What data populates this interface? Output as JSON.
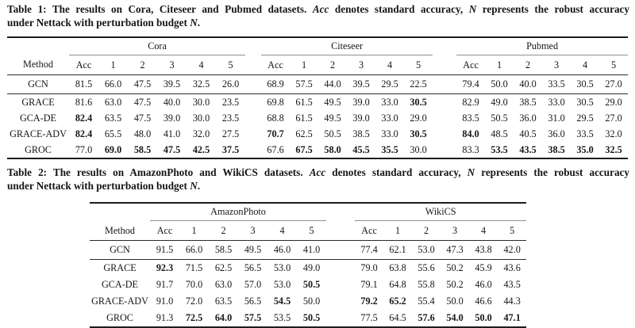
{
  "colors": {
    "background": "#ffffff",
    "text": "#161616",
    "rule_heavy": "#1c1c1c",
    "rule_mid": "#2b2b2b",
    "rule_light": "#8f8f8f"
  },
  "table1": {
    "caption_lines": [
      [
        {
          "t": "Table 1: The results on Cora, Citeseer and Pubmed datasets. ",
          "i": false
        },
        {
          "t": "Acc",
          "i": true
        },
        {
          "t": " denotes standard accuracy, ",
          "i": false
        },
        {
          "t": "N",
          "i": true
        },
        {
          "t": " represents the robust accuracy",
          "i": false
        }
      ],
      [
        {
          "t": "under Nettack with perturbation budget ",
          "i": false
        },
        {
          "t": "N",
          "i": true
        },
        {
          "t": ".",
          "i": false
        }
      ]
    ],
    "method_header": "Method",
    "groups": [
      {
        "name": "Cora",
        "columns": [
          "Acc",
          "1",
          "2",
          "3",
          "4",
          "5"
        ]
      },
      {
        "name": "Citeseer",
        "columns": [
          "Acc",
          "1",
          "2",
          "3",
          "4",
          "5"
        ]
      },
      {
        "name": "Pubmed",
        "columns": [
          "Acc",
          "1",
          "2",
          "3",
          "4",
          "5"
        ]
      }
    ],
    "rows": [
      {
        "method": "GCN",
        "cells": [
          {
            "v": "81.5"
          },
          {
            "v": "66.0"
          },
          {
            "v": "47.5"
          },
          {
            "v": "39.5"
          },
          {
            "v": "32.5"
          },
          {
            "v": "26.0"
          },
          {
            "v": "68.9"
          },
          {
            "v": "57.5"
          },
          {
            "v": "44.0"
          },
          {
            "v": "39.5"
          },
          {
            "v": "29.5"
          },
          {
            "v": "22.5"
          },
          {
            "v": "79.4"
          },
          {
            "v": "50.0"
          },
          {
            "v": "40.0"
          },
          {
            "v": "33.5"
          },
          {
            "v": "30.5"
          },
          {
            "v": "27.0"
          }
        ]
      },
      {
        "method": "GRACE",
        "cells": [
          {
            "v": "81.6"
          },
          {
            "v": "63.0"
          },
          {
            "v": "47.5"
          },
          {
            "v": "40.0"
          },
          {
            "v": "30.0"
          },
          {
            "v": "23.5"
          },
          {
            "v": "69.8"
          },
          {
            "v": "61.5"
          },
          {
            "v": "49.5"
          },
          {
            "v": "39.0"
          },
          {
            "v": "33.0"
          },
          {
            "v": "30.5",
            "b": true
          },
          {
            "v": "82.9"
          },
          {
            "v": "49.0"
          },
          {
            "v": "38.5"
          },
          {
            "v": "33.0"
          },
          {
            "v": "30.5"
          },
          {
            "v": "29.0"
          }
        ]
      },
      {
        "method": "GCA-DE",
        "cells": [
          {
            "v": "82.4",
            "b": true
          },
          {
            "v": "63.5"
          },
          {
            "v": "47.5"
          },
          {
            "v": "39.0"
          },
          {
            "v": "30.0"
          },
          {
            "v": "23.5"
          },
          {
            "v": "68.8"
          },
          {
            "v": "61.5"
          },
          {
            "v": "49.5"
          },
          {
            "v": "39.0"
          },
          {
            "v": "33.0"
          },
          {
            "v": "29.0"
          },
          {
            "v": "83.5"
          },
          {
            "v": "50.5"
          },
          {
            "v": "36.0"
          },
          {
            "v": "31.0"
          },
          {
            "v": "29.5"
          },
          {
            "v": "27.0"
          }
        ]
      },
      {
        "method": "GRACE-ADV",
        "cells": [
          {
            "v": "82.4",
            "b": true
          },
          {
            "v": "65.5"
          },
          {
            "v": "48.0"
          },
          {
            "v": "41.0"
          },
          {
            "v": "32.0"
          },
          {
            "v": "27.5"
          },
          {
            "v": "70.7",
            "b": true
          },
          {
            "v": "62.5"
          },
          {
            "v": "50.5"
          },
          {
            "v": "38.5"
          },
          {
            "v": "33.0"
          },
          {
            "v": "30.5",
            "b": true
          },
          {
            "v": "84.0",
            "b": true
          },
          {
            "v": "48.5"
          },
          {
            "v": "40.5"
          },
          {
            "v": "36.0"
          },
          {
            "v": "33.5"
          },
          {
            "v": "32.0"
          }
        ]
      },
      {
        "method": "GROC",
        "cells": [
          {
            "v": "77.0"
          },
          {
            "v": "69.0",
            "b": true
          },
          {
            "v": "58.5",
            "b": true
          },
          {
            "v": "47.5",
            "b": true
          },
          {
            "v": "42.5",
            "b": true
          },
          {
            "v": "37.5",
            "b": true
          },
          {
            "v": "67.6"
          },
          {
            "v": "67.5",
            "b": true
          },
          {
            "v": "58.0",
            "b": true
          },
          {
            "v": "45.5",
            "b": true
          },
          {
            "v": "35.5",
            "b": true
          },
          {
            "v": "30.0"
          },
          {
            "v": "83.3"
          },
          {
            "v": "53.5",
            "b": true
          },
          {
            "v": "43.5",
            "b": true
          },
          {
            "v": "38.5",
            "b": true
          },
          {
            "v": "35.0",
            "b": true
          },
          {
            "v": "32.5",
            "b": true
          }
        ]
      }
    ]
  },
  "table2": {
    "caption_lines": [
      [
        {
          "t": "Table 2: The results on AmazonPhoto and WikiCS datasets. ",
          "i": false
        },
        {
          "t": "Acc",
          "i": true
        },
        {
          "t": " denotes standard accuracy, ",
          "i": false
        },
        {
          "t": "N",
          "i": true
        },
        {
          "t": " represents the robust accuracy",
          "i": false
        }
      ],
      [
        {
          "t": "under Nettack with perturbation budget ",
          "i": false
        },
        {
          "t": "N",
          "i": true
        },
        {
          "t": ".",
          "i": false
        }
      ]
    ],
    "method_header": "Method",
    "groups": [
      {
        "name": "AmazonPhoto",
        "columns": [
          "Acc",
          "1",
          "2",
          "3",
          "4",
          "5"
        ]
      },
      {
        "name": "WikiCS",
        "columns": [
          "Acc",
          "1",
          "2",
          "3",
          "4",
          "5"
        ]
      }
    ],
    "rows": [
      {
        "method": "GCN",
        "cells": [
          {
            "v": "91.5"
          },
          {
            "v": "66.0"
          },
          {
            "v": "58.5"
          },
          {
            "v": "49.5"
          },
          {
            "v": "46.0"
          },
          {
            "v": "41.0"
          },
          {
            "v": "77.4"
          },
          {
            "v": "62.1"
          },
          {
            "v": "53.0"
          },
          {
            "v": "47.3"
          },
          {
            "v": "43.8"
          },
          {
            "v": "42.0"
          }
        ]
      },
      {
        "method": "GRACE",
        "cells": [
          {
            "v": "92.3",
            "b": true
          },
          {
            "v": "71.5"
          },
          {
            "v": "62.5"
          },
          {
            "v": "56.5"
          },
          {
            "v": "53.0"
          },
          {
            "v": "49.0"
          },
          {
            "v": "79.0"
          },
          {
            "v": "63.8"
          },
          {
            "v": "55.6"
          },
          {
            "v": "50.2"
          },
          {
            "v": "45.9"
          },
          {
            "v": "43.6"
          }
        ]
      },
      {
        "method": "GCA-DE",
        "cells": [
          {
            "v": "91.7"
          },
          {
            "v": "70.0"
          },
          {
            "v": "63.0"
          },
          {
            "v": "57.0"
          },
          {
            "v": "53.0"
          },
          {
            "v": "50.5",
            "b": true
          },
          {
            "v": "79.1"
          },
          {
            "v": "64.8"
          },
          {
            "v": "55.8"
          },
          {
            "v": "50.2"
          },
          {
            "v": "46.0"
          },
          {
            "v": "43.5"
          }
        ]
      },
      {
        "method": "GRACE-ADV",
        "cells": [
          {
            "v": "91.0"
          },
          {
            "v": "72.0"
          },
          {
            "v": "63.5"
          },
          {
            "v": "56.5"
          },
          {
            "v": "54.5",
            "b": true
          },
          {
            "v": "50.0"
          },
          {
            "v": "79.2",
            "b": true
          },
          {
            "v": "65.2",
            "b": true
          },
          {
            "v": "55.4"
          },
          {
            "v": "50.0"
          },
          {
            "v": "46.6"
          },
          {
            "v": "44.3"
          }
        ]
      },
      {
        "method": "GROC",
        "cells": [
          {
            "v": "91.3"
          },
          {
            "v": "72.5",
            "b": true
          },
          {
            "v": "64.0",
            "b": true
          },
          {
            "v": "57.5",
            "b": true
          },
          {
            "v": "53.5"
          },
          {
            "v": "50.5",
            "b": true
          },
          {
            "v": "77.5"
          },
          {
            "v": "64.5"
          },
          {
            "v": "57.6",
            "b": true
          },
          {
            "v": "54.0",
            "b": true
          },
          {
            "v": "50.0",
            "b": true
          },
          {
            "v": "47.1",
            "b": true
          }
        ]
      }
    ]
  }
}
